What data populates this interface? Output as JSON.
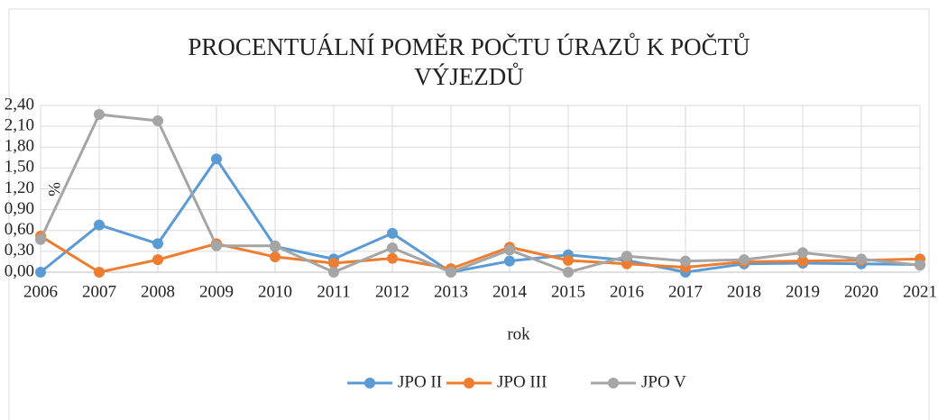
{
  "chart_data": {
    "type": "line",
    "title": "PROCENTUÁLNÍ POMĚR POČTU ÚRAZŮ K POČTŮ VÝJEZDŮ",
    "y_label": "%",
    "x_label": "rok",
    "categories": [
      "2006",
      "2007",
      "2008",
      "2009",
      "2010",
      "2011",
      "2012",
      "2013",
      "2014",
      "2015",
      "2016",
      "2017",
      "2018",
      "2019",
      "2020",
      "2021"
    ],
    "series": [
      {
        "name": "JPO II",
        "color": "#5b9bd5",
        "values": [
          0.0,
          0.68,
          0.41,
          1.63,
          0.37,
          0.19,
          0.56,
          0.0,
          0.16,
          0.25,
          0.17,
          0.0,
          0.12,
          0.13,
          0.12,
          0.11
        ]
      },
      {
        "name": "JPO III",
        "color": "#ed7d31",
        "values": [
          0.52,
          0.0,
          0.18,
          0.41,
          0.22,
          0.13,
          0.2,
          0.05,
          0.36,
          0.17,
          0.12,
          0.07,
          0.15,
          0.16,
          0.17,
          0.19
        ]
      },
      {
        "name": "JPO V",
        "color": "#a5a5a5",
        "values": [
          0.47,
          2.27,
          2.18,
          0.38,
          0.38,
          0.0,
          0.35,
          0.0,
          0.32,
          0.0,
          0.23,
          0.16,
          0.18,
          0.28,
          0.19,
          0.1
        ]
      }
    ],
    "ylim": [
      0,
      2.4
    ],
    "yticks": [
      {
        "value": 0,
        "label": "0,00"
      },
      {
        "value": 0.3,
        "label": "0,30"
      },
      {
        "value": 0.6,
        "label": "0,60"
      },
      {
        "value": 0.9,
        "label": "0,90"
      },
      {
        "value": 1.2,
        "label": "1,20"
      },
      {
        "value": 1.5,
        "label": "1,50"
      },
      {
        "value": 1.8,
        "label": "1,80"
      },
      {
        "value": 2.1,
        "label": "2,10"
      },
      {
        "value": 2.4,
        "label": "2,40"
      }
    ],
    "grid": true,
    "legend": "bottom"
  }
}
